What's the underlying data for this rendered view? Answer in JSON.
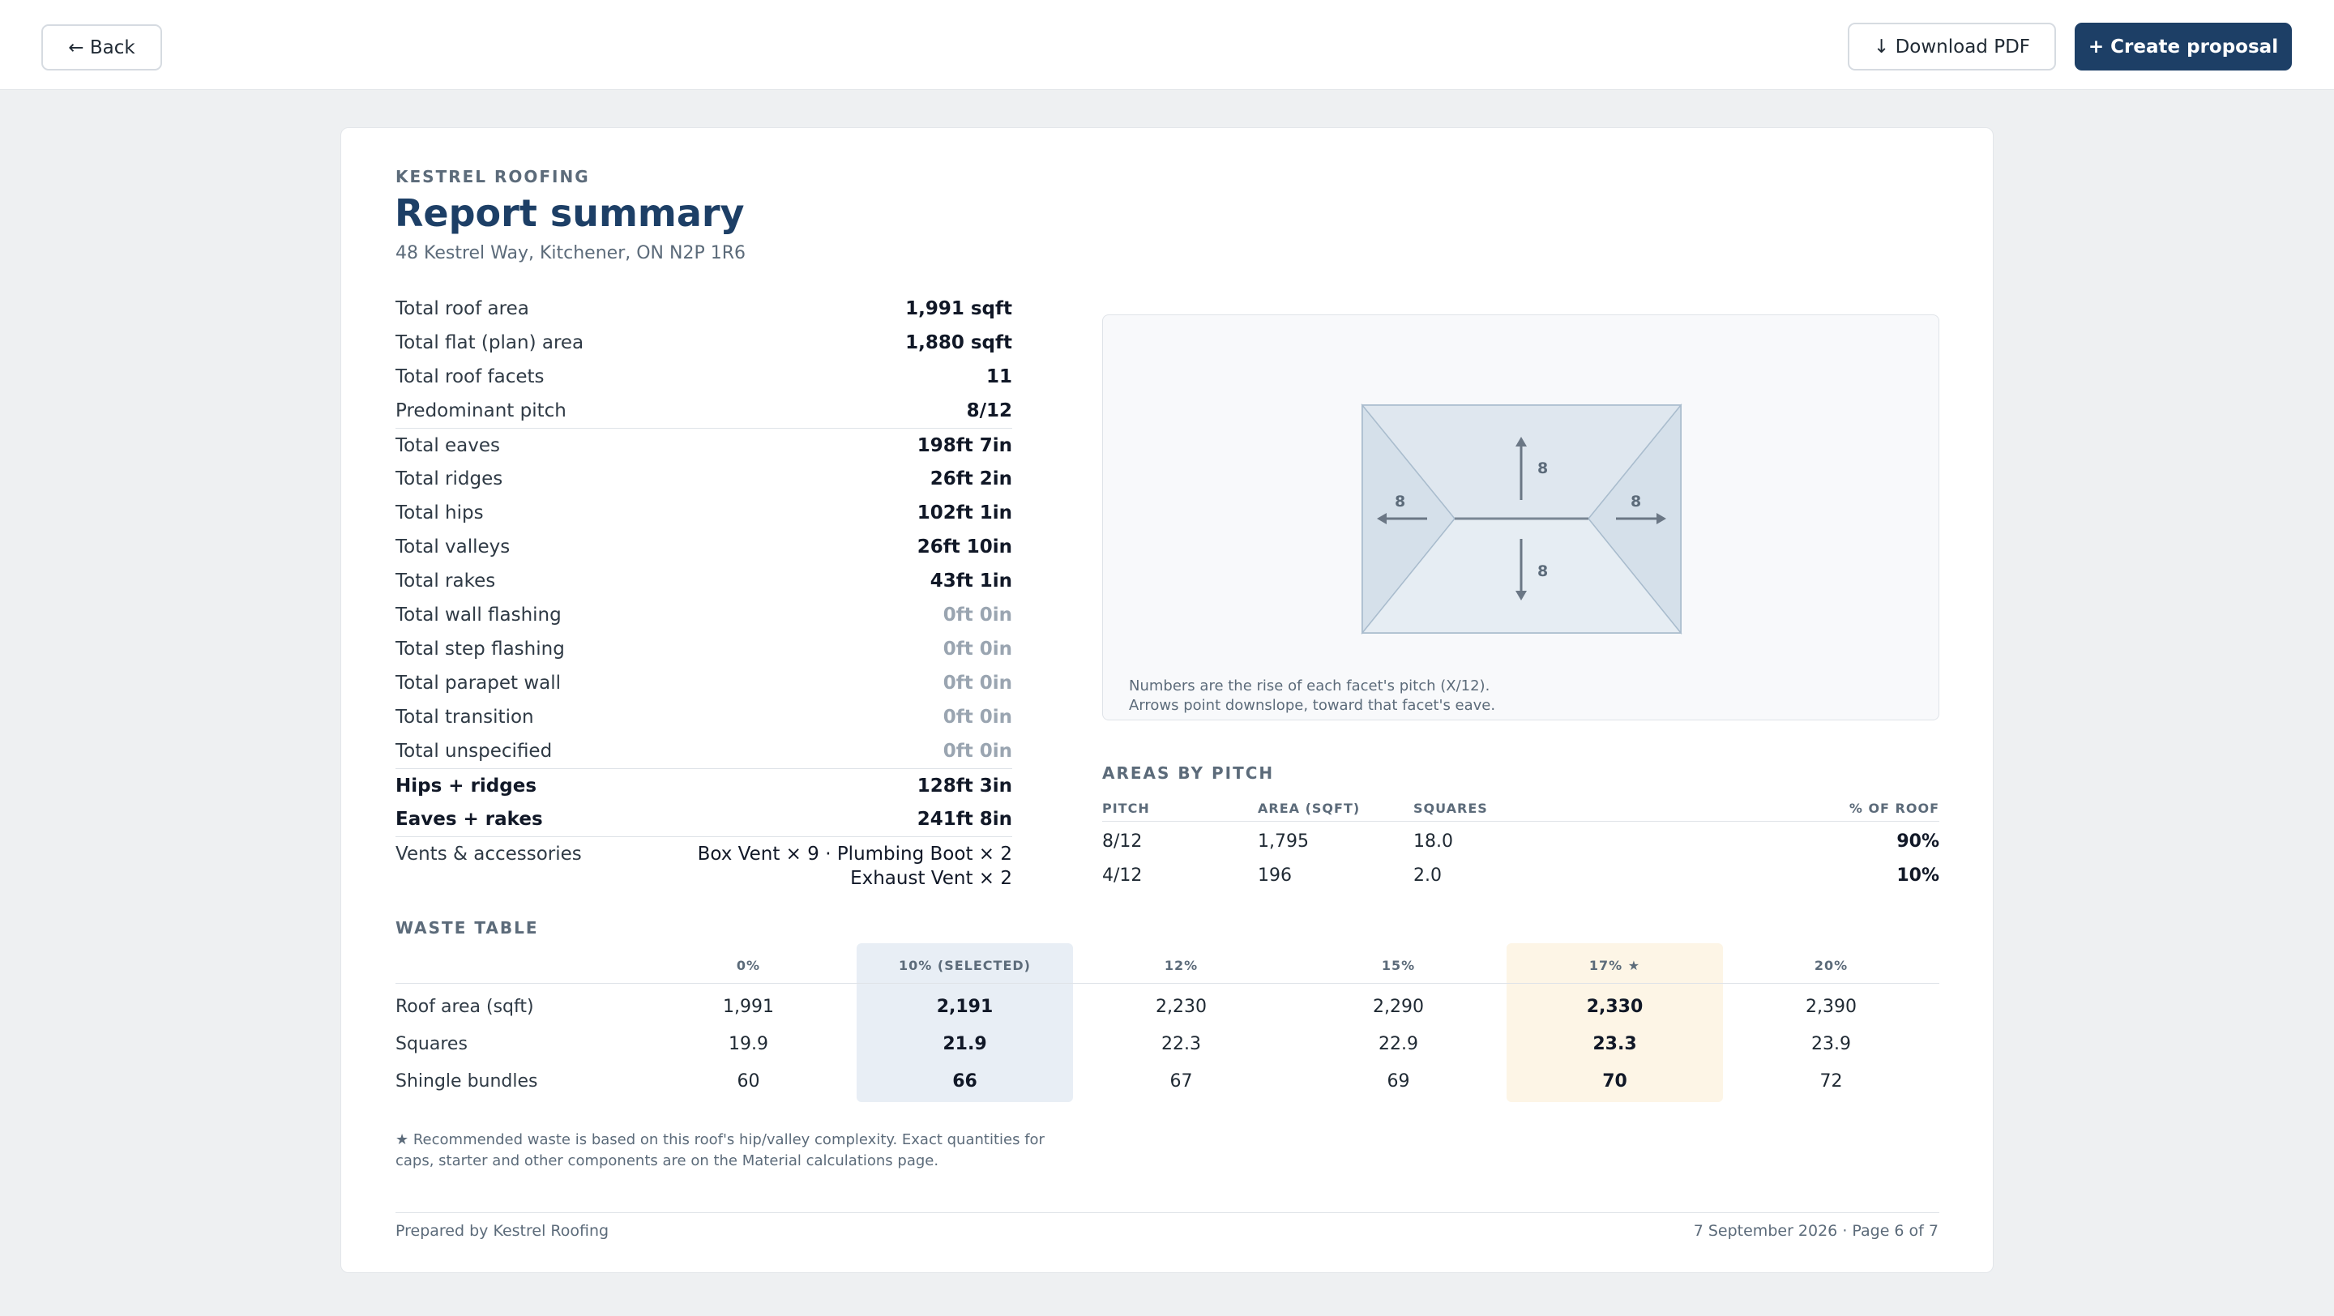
{
  "toolbar": {
    "back_label": "← Back",
    "download_label": "↓ Download PDF",
    "proposal_label": "+ Create proposal"
  },
  "report": {
    "brand": "KESTREL ROOFING",
    "title": "Report summary",
    "address": "48 Kestrel Way, Kitchener, ON N2P 1R6"
  },
  "stats": [
    {
      "label": "Total roof area",
      "value": "1,991 sqft"
    },
    {
      "label": "Total flat (plan) area",
      "value": "1,880 sqft"
    },
    {
      "label": "Total roof facets",
      "value": "11"
    },
    {
      "label": "Predominant pitch",
      "value": "8/12"
    },
    {
      "label": "Total eaves",
      "value": "198ft 7in"
    },
    {
      "label": "Total ridges",
      "value": "26ft 2in"
    },
    {
      "label": "Total hips",
      "value": "102ft 1in"
    },
    {
      "label": "Total valleys",
      "value": "26ft 10in"
    },
    {
      "label": "Total rakes",
      "value": "43ft 1in"
    },
    {
      "label": "Total wall flashing",
      "value": "0ft 0in"
    },
    {
      "label": "Total step flashing",
      "value": "0ft 0in"
    },
    {
      "label": "Total parapet wall",
      "value": "0ft 0in"
    },
    {
      "label": "Total transition",
      "value": "0ft 0in"
    },
    {
      "label": "Total unspecified",
      "value": "0ft 0in"
    },
    {
      "label": "Hips + ridges",
      "value": "128ft 3in"
    },
    {
      "label": "Eaves + rakes",
      "value": "241ft 8in"
    }
  ],
  "vents": {
    "label": "Vents & accessories",
    "line1": "Box Vent × 9 · Plumbing Boot × 2",
    "line2": "Exhaust Vent × 2"
  },
  "diagram": {
    "pitch_labels": [
      "8",
      "8",
      "8",
      "8"
    ],
    "note_line1": "Numbers are the rise of each facet's pitch (X/12).",
    "note_line2": "Arrows point downslope, toward that facet's eave.",
    "colors": {
      "facet": "#dbe5ee",
      "outline": "#a9bccd",
      "ridge": "#7a8794"
    }
  },
  "areas_by_pitch": {
    "title": "AREAS BY PITCH",
    "headers": [
      "PITCH",
      "AREA (SQFT)",
      "SQUARES",
      "% OF ROOF"
    ],
    "rows": [
      [
        "8/12",
        "1,795",
        "18.0",
        "90%"
      ],
      [
        "4/12",
        "196",
        "2.0",
        "10%"
      ]
    ]
  },
  "waste_table": {
    "title": "WASTE TABLE",
    "columns": [
      "0%",
      "10% (SELECTED)",
      "12%",
      "15%",
      "17% ★",
      "20%"
    ],
    "selected_index": 1,
    "recommended_index": 4,
    "rows": [
      {
        "label": "Roof area (sqft)",
        "values": [
          "1,991",
          "2,191",
          "2,230",
          "2,290",
          "2,330",
          "2,390"
        ]
      },
      {
        "label": "Squares",
        "values": [
          "19.9",
          "21.9",
          "22.3",
          "22.9",
          "23.3",
          "23.9"
        ]
      },
      {
        "label": "Shingle bundles",
        "values": [
          "60",
          "66",
          "67",
          "69",
          "70",
          "72"
        ]
      }
    ],
    "highlight_colors": {
      "selected": "#e8eef5",
      "recommended": "#fdf5e6"
    }
  },
  "footnote": "★ Recommended waste is based on this roof's hip/valley complexity. Exact quantities for caps, starter and other components are on the Material calculations page.",
  "footer": {
    "prepared_by": "Prepared by Kestrel Roofing",
    "date_page": "7 September 2026 · Page 6 of 7"
  }
}
